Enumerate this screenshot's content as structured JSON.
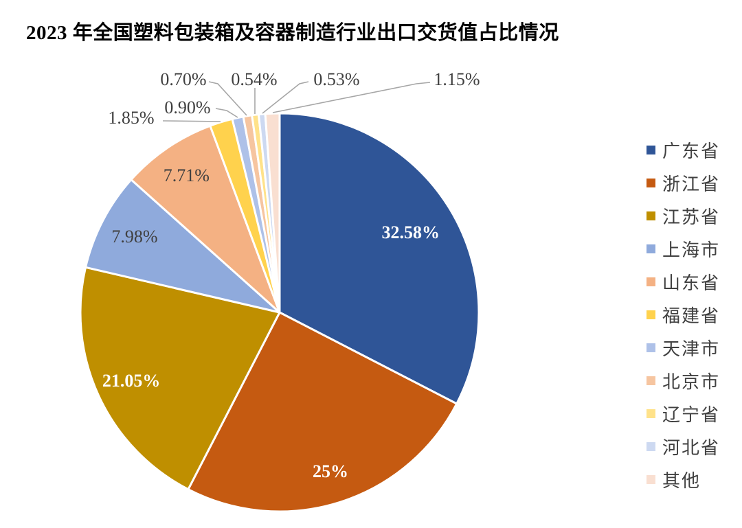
{
  "title": "2023 年全国塑料包装箱及容器制造行业出口交货值占比情况",
  "chart_data": {
    "type": "pie",
    "title": "2023 年全国塑料包装箱及容器制造行业出口交货值占比情况",
    "legend_position": "right",
    "start_angle_deg": 0,
    "direction": "clockwise",
    "legend": [
      "广东省",
      "浙江省",
      "江苏省",
      "上海市",
      "山东省",
      "福建省",
      "天津市",
      "北京市",
      "辽宁省",
      "河北省",
      "其他"
    ],
    "slices": [
      {
        "name": "广东省",
        "value": 32.58,
        "label": "32.58%",
        "color": "#2F5597",
        "label_color": "#FFFFFF",
        "label_placement": "inside"
      },
      {
        "name": "浙江省",
        "value": 25.0,
        "label": "25%",
        "color": "#C55A11",
        "label_color": "#FFFFFF",
        "label_placement": "inside"
      },
      {
        "name": "江苏省",
        "value": 21.05,
        "label": "21.05%",
        "color": "#BF8F00",
        "label_color": "#FFFFFF",
        "label_placement": "inside"
      },
      {
        "name": "上海市",
        "value": 7.98,
        "label": "7.98%",
        "color": "#8FAADC",
        "label_color": "#404040",
        "label_placement": "inside"
      },
      {
        "name": "山东省",
        "value": 7.71,
        "label": "7.71%",
        "color": "#F4B183",
        "label_color": "#404040",
        "label_placement": "inside"
      },
      {
        "name": "福建省",
        "value": 1.85,
        "label": "1.85%",
        "color": "#FFD24D",
        "label_color": "#404040",
        "label_placement": "outside"
      },
      {
        "name": "天津市",
        "value": 0.9,
        "label": "0.90%",
        "color": "#AEC1E8",
        "label_color": "#404040",
        "label_placement": "outside"
      },
      {
        "name": "北京市",
        "value": 0.7,
        "label": "0.70%",
        "color": "#F6C5A0",
        "label_color": "#404040",
        "label_placement": "outside"
      },
      {
        "name": "辽宁省",
        "value": 0.54,
        "label": "0.54%",
        "color": "#FFE28A",
        "label_color": "#404040",
        "label_placement": "outside"
      },
      {
        "name": "河北省",
        "value": 0.53,
        "label": "0.53%",
        "color": "#CDD9F1",
        "label_color": "#404040",
        "label_placement": "outside"
      },
      {
        "name": "其他",
        "value": 1.15,
        "label": "1.15%",
        "color": "#F9DFD1",
        "label_color": "#404040",
        "label_placement": "outside"
      }
    ],
    "style": {
      "slice_border_color": "#FFFFFF",
      "leader_line_color": "#A6A6A6",
      "outside_label_color": "#404040",
      "legend_text_color": "#404040",
      "title_color": "#000000",
      "background": "#FFFFFF"
    }
  }
}
